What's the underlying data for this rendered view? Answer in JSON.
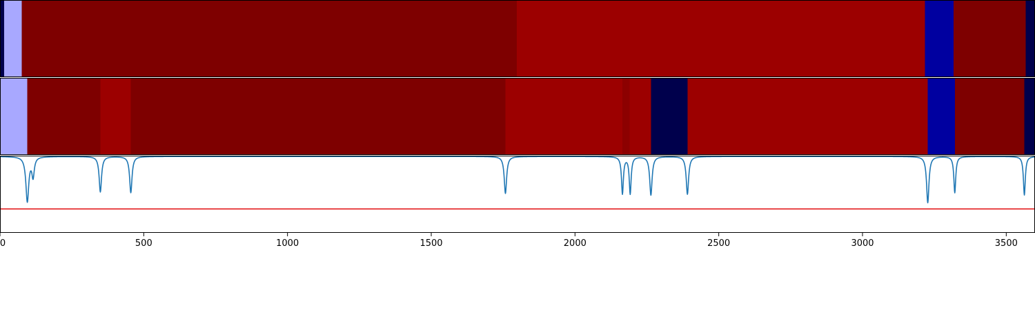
{
  "chart_data": [
    {
      "type": "heatmap",
      "xlim": [
        0,
        3600
      ],
      "segments": [
        {
          "start": 0,
          "end": 14,
          "color": "#00004c"
        },
        {
          "start": 14,
          "end": 76,
          "color": "#a8a8ff"
        },
        {
          "start": 76,
          "end": 1797,
          "color": "#7e0000"
        },
        {
          "start": 1797,
          "end": 3217,
          "color": "#9c0000"
        },
        {
          "start": 3217,
          "end": 3317,
          "color": "#0000a0"
        },
        {
          "start": 3317,
          "end": 3567,
          "color": "#7e0000"
        },
        {
          "start": 3567,
          "end": 3600,
          "color": "#00004c"
        }
      ]
    },
    {
      "type": "heatmap",
      "xlim": [
        0,
        3600
      ],
      "segments": [
        {
          "start": 0,
          "end": 95,
          "color": "#a8a8ff"
        },
        {
          "start": 95,
          "end": 349,
          "color": "#7e0000"
        },
        {
          "start": 349,
          "end": 455,
          "color": "#9c0000"
        },
        {
          "start": 455,
          "end": 1758,
          "color": "#7e0000"
        },
        {
          "start": 1758,
          "end": 2165,
          "color": "#9c0000"
        },
        {
          "start": 2165,
          "end": 2190,
          "color": "#8c0000"
        },
        {
          "start": 2190,
          "end": 2264,
          "color": "#9c0000"
        },
        {
          "start": 2264,
          "end": 2391,
          "color": "#00004c"
        },
        {
          "start": 2391,
          "end": 3227,
          "color": "#9c0000"
        },
        {
          "start": 3227,
          "end": 3321,
          "color": "#0000a0"
        },
        {
          "start": 3321,
          "end": 3563,
          "color": "#7e0000"
        },
        {
          "start": 3563,
          "end": 3600,
          "color": "#00004c"
        }
      ]
    },
    {
      "type": "line",
      "xlim": [
        0,
        3600
      ],
      "ylim": [
        0,
        1
      ],
      "xticks": [
        0,
        500,
        1000,
        1500,
        2000,
        2500,
        3000,
        3500
      ],
      "baseline": 0.99,
      "threshold": 0.31,
      "threshold_color": "#e31a1c",
      "series_color": "#1f77b4",
      "dips": [
        {
          "x": 95,
          "depth": 0.58,
          "width": 6
        },
        {
          "x": 115,
          "depth": 0.25,
          "width": 5
        },
        {
          "x": 349,
          "depth": 0.46,
          "width": 5
        },
        {
          "x": 455,
          "depth": 0.47,
          "width": 5
        },
        {
          "x": 1758,
          "depth": 0.48,
          "width": 5
        },
        {
          "x": 2165,
          "depth": 0.48,
          "width": 4
        },
        {
          "x": 2192,
          "depth": 0.48,
          "width": 4
        },
        {
          "x": 2264,
          "depth": 0.5,
          "width": 5
        },
        {
          "x": 2391,
          "depth": 0.49,
          "width": 5
        },
        {
          "x": 3227,
          "depth": 0.6,
          "width": 5
        },
        {
          "x": 3321,
          "depth": 0.47,
          "width": 4
        },
        {
          "x": 3563,
          "depth": 0.5,
          "width": 4
        }
      ]
    }
  ]
}
